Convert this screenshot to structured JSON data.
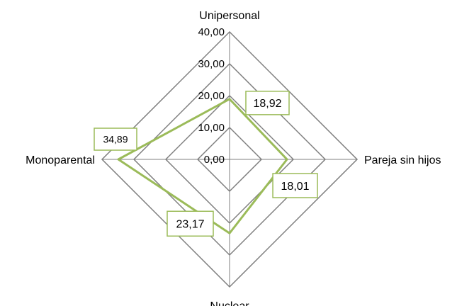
{
  "chart_data": {
    "type": "radar",
    "categories": [
      "Unipersonal",
      "Pareja sin hijos",
      "Nuclear",
      "Monoparental"
    ],
    "values": [
      18.92,
      18.01,
      23.17,
      34.89
    ],
    "value_labels": [
      "18,92",
      "18,01",
      "23,17",
      "34,89"
    ],
    "tick_values": [
      0,
      10,
      20,
      30,
      40
    ],
    "tick_labels": [
      "0,00",
      "10,00",
      "20,00",
      "30,00",
      "40,00"
    ],
    "rlim": [
      0,
      40
    ],
    "title": "",
    "legend": "none",
    "grid": true,
    "colors": {
      "series": "#9bbb59",
      "grid": "#7f7f7f"
    }
  }
}
